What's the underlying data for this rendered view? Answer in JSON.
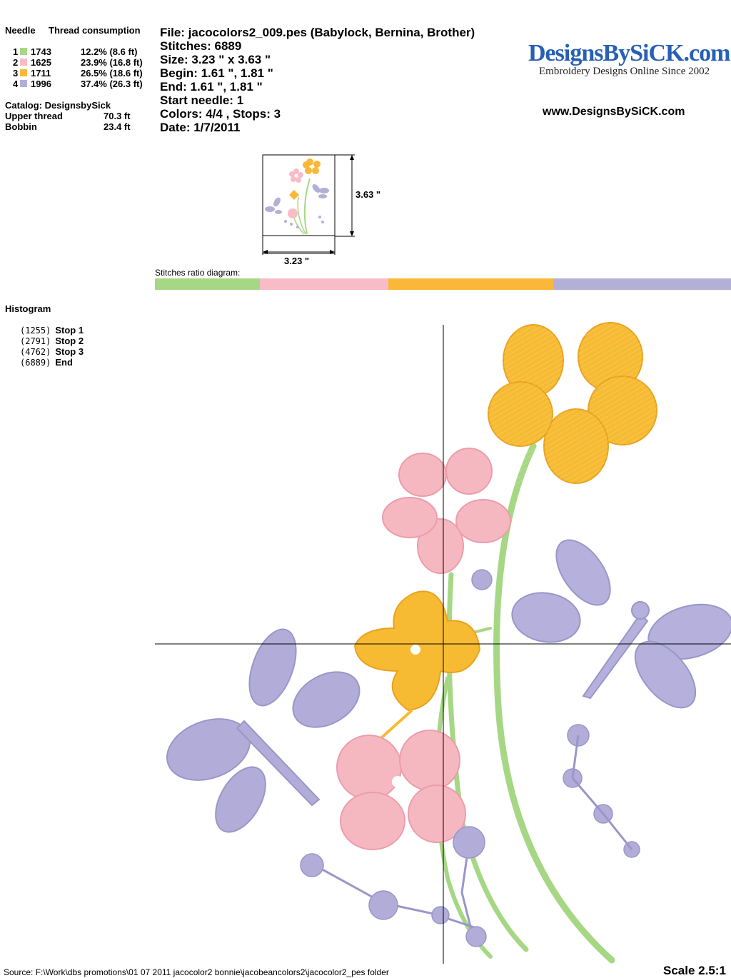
{
  "needle_table": {
    "header_needle": "Needle",
    "header_thread": "Thread consumption",
    "rows": [
      {
        "num": "1",
        "code": "1743",
        "consumption": "12.2% (8.6 ft)",
        "color": "#a6d785"
      },
      {
        "num": "2",
        "code": "1625",
        "consumption": "23.9% (16.8 ft)",
        "color": "#f8bcc8"
      },
      {
        "num": "3",
        "code": "1711",
        "consumption": "26.5% (18.6 ft)",
        "color": "#fbb838"
      },
      {
        "num": "4",
        "code": "1996",
        "consumption": "37.4% (26.3 ft)",
        "color": "#b3b0d8"
      }
    ]
  },
  "catalog": {
    "catalog_label": "Catalog: DesignsbySick",
    "upper_label": "Upper thread",
    "upper_value": "70.3 ft",
    "bobbin_label": "Bobbin",
    "bobbin_value": "23.4 ft"
  },
  "file_info": {
    "file": "File: jacocolors2_009.pes  (Babylock, Bernina, Brother)",
    "stitches": "Stitches: 6889",
    "size": "Size: 3.23 \" x 3.63 \"",
    "begin": "Begin: 1.61 \", 1.81 \"",
    "end": "End: 1.61 \", 1.81 \"",
    "start_needle": "Start needle: 1",
    "colors": "Colors: 4/4 , Stops: 3",
    "date": "Date: 1/7/2011"
  },
  "logo": {
    "name": "DesignsBySiCK.com",
    "tagline": "Embroidery Designs Online Since 2002",
    "url": "www.DesignsBySiCK.com"
  },
  "thumbnail": {
    "height_label": "3.63 \"",
    "width_label": "3.23 \""
  },
  "ratio": {
    "label": "Stitches ratio diagram:",
    "segments": [
      {
        "fraction": 0.182,
        "color": "#a6d785"
      },
      {
        "fraction": 0.223,
        "color": "#f8bcc8"
      },
      {
        "fraction": 0.287,
        "color": "#fbb838"
      },
      {
        "fraction": 0.308,
        "color": "#b3b0d8"
      }
    ]
  },
  "histogram": {
    "title": "Histogram",
    "rows": [
      {
        "count": "(1255)",
        "label": "Stop 1"
      },
      {
        "count": "(2791)",
        "label": "Stop 2"
      },
      {
        "count": "(4762)",
        "label": "Stop 3"
      },
      {
        "count": "(6889)",
        "label": "End"
      }
    ]
  },
  "footer": {
    "source": "Source: F:\\Work\\dbs promotions\\01 07 2011 jacocolor2 bonnie\\jacobeancolors2\\jacocolor2_pes folder",
    "scale": "Scale 2.5:1"
  }
}
